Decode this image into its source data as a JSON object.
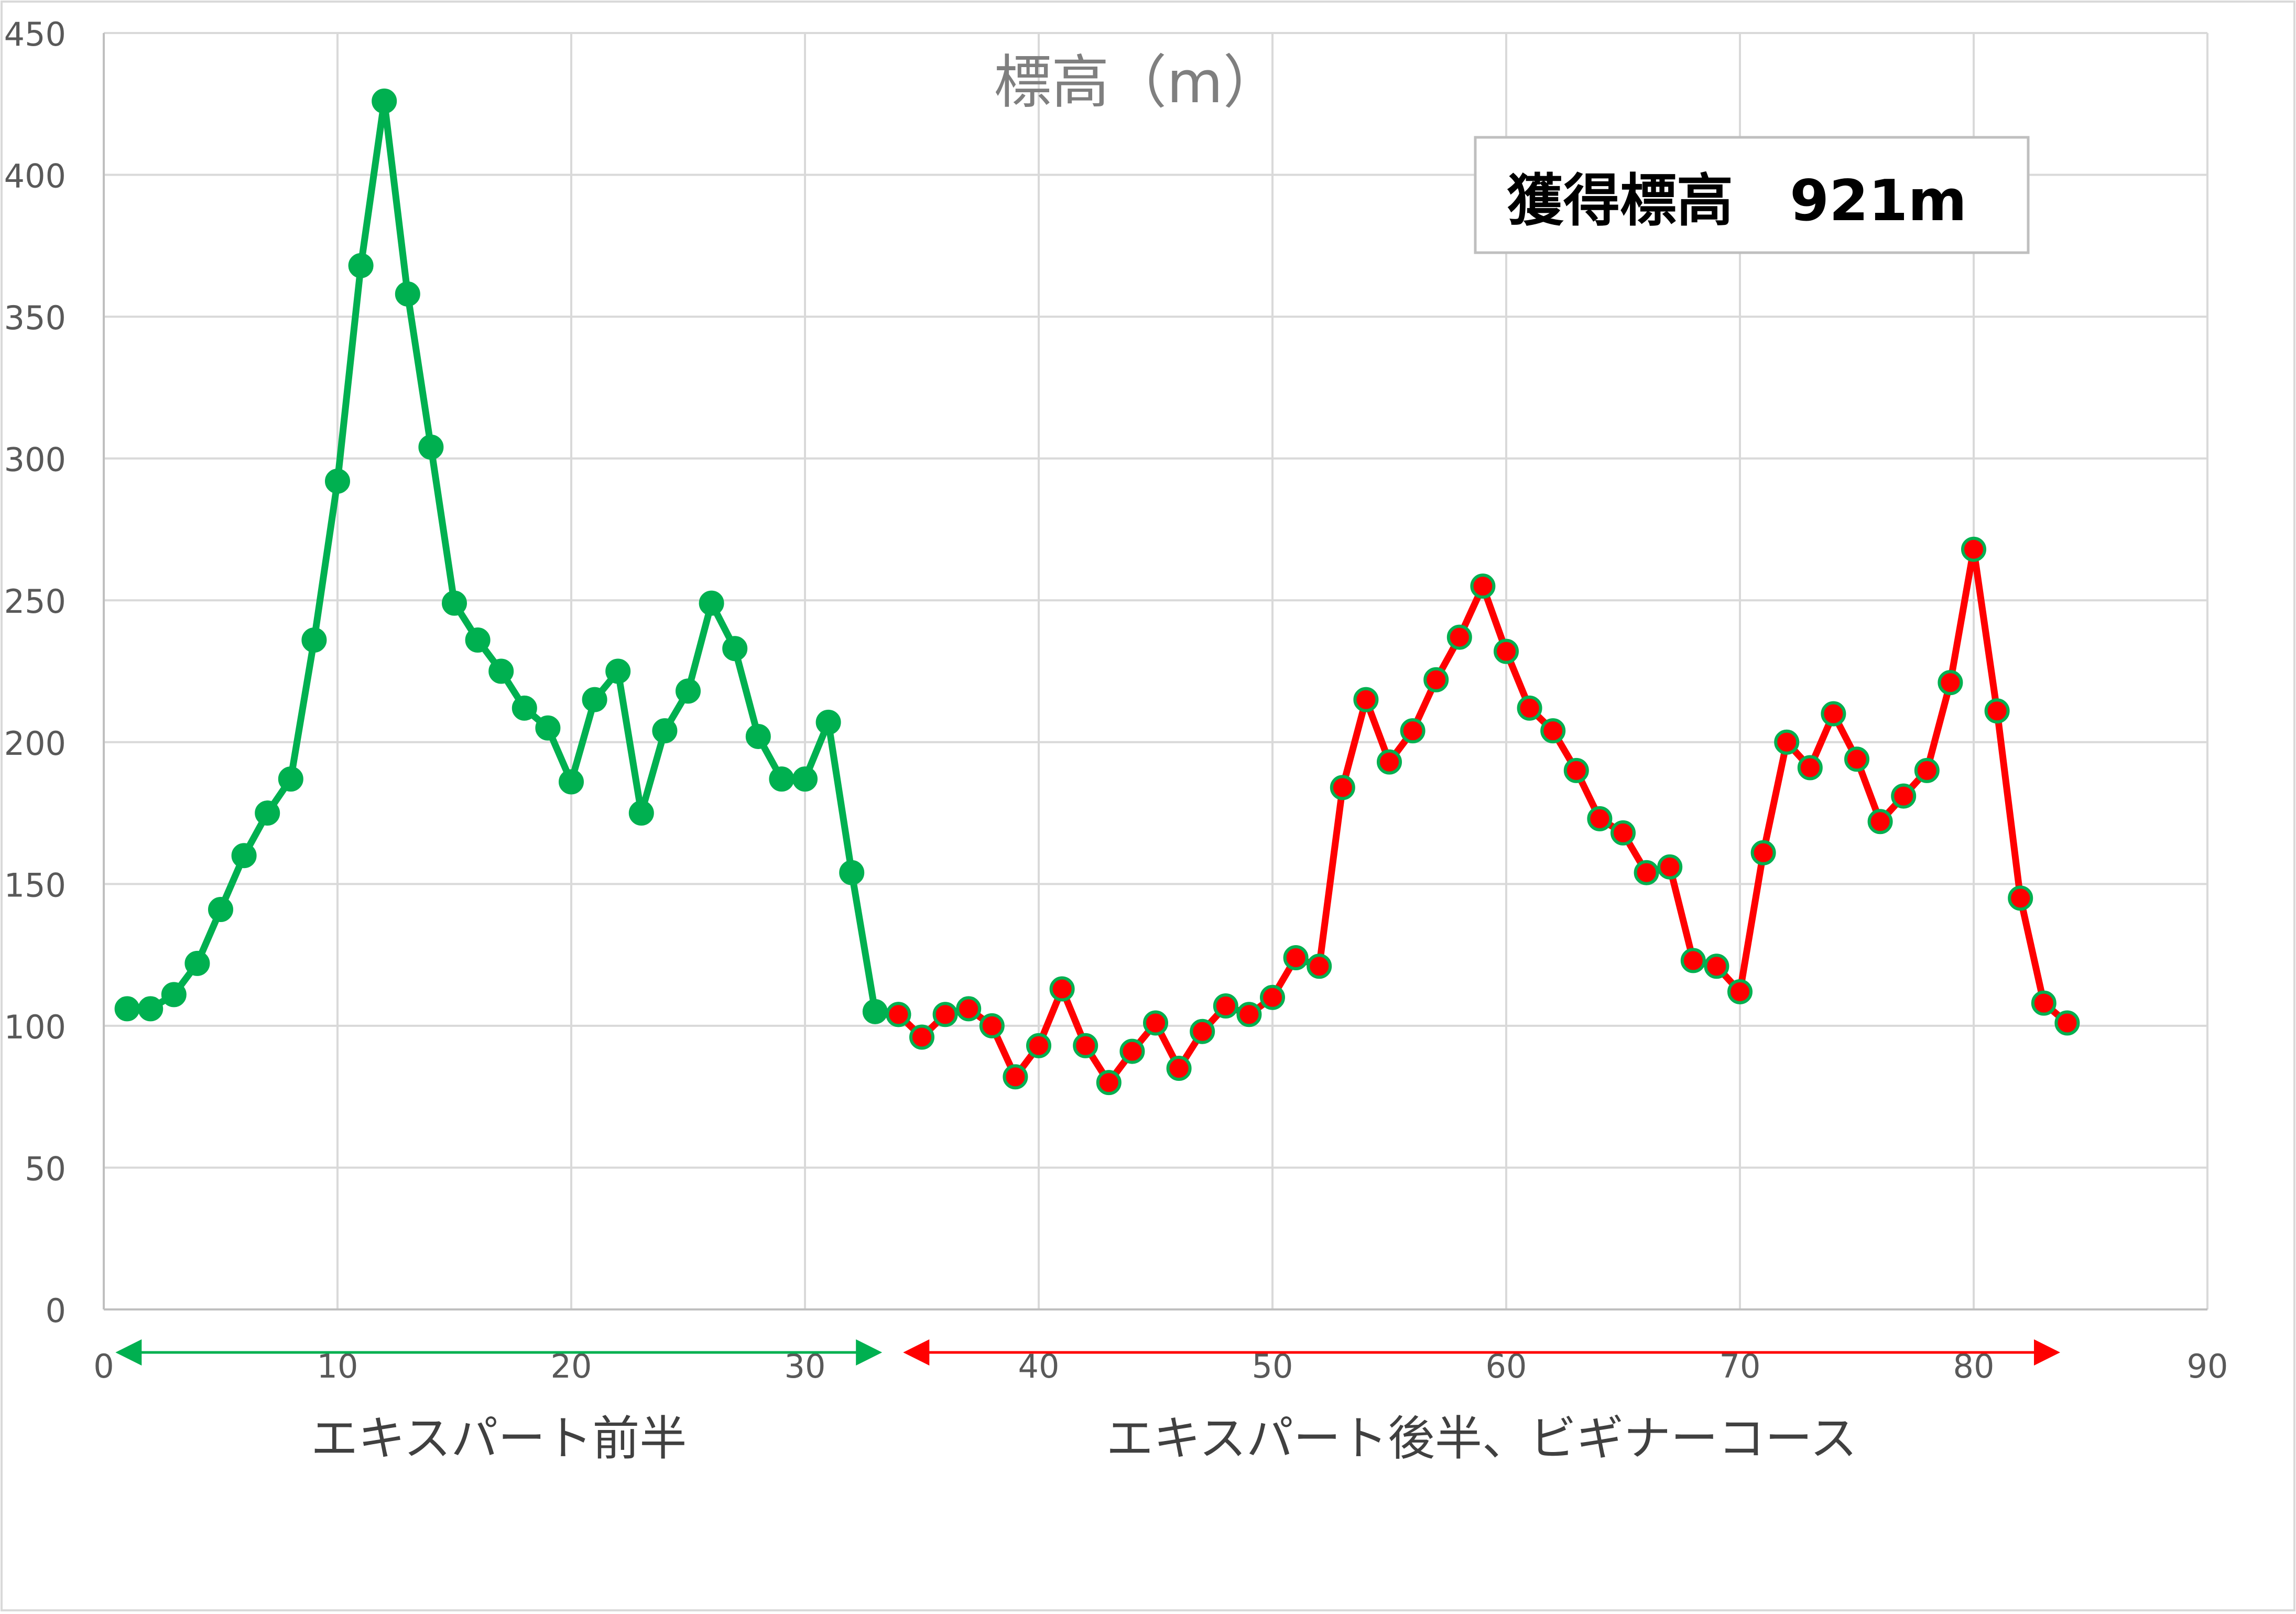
{
  "chart_data": {
    "type": "line",
    "title": "標高（m）",
    "annotation": "獲得標高　921m",
    "xlim": [
      0,
      90
    ],
    "ylim": [
      0,
      450
    ],
    "x_ticks": [
      "0",
      "10",
      "20",
      "30",
      "40",
      "50",
      "60",
      "70",
      "80",
      "90"
    ],
    "y_ticks": [
      "0",
      "50",
      "100",
      "150",
      "200",
      "250",
      "300",
      "350",
      "400",
      "450"
    ],
    "grid": true,
    "series": [
      {
        "color": "#00b050",
        "marker_fill": "#00b050",
        "x": [
          1,
          2,
          3,
          4,
          5,
          6,
          7,
          8,
          9,
          10,
          11,
          12,
          13,
          14,
          15,
          16,
          17,
          18,
          19,
          20,
          21,
          22,
          23,
          24,
          25,
          26,
          27,
          28,
          29,
          30,
          31,
          32,
          33,
          34
        ],
        "values": [
          106,
          106,
          111,
          122,
          141,
          160,
          175,
          187,
          236,
          292,
          368,
          426,
          358,
          304,
          249,
          236,
          225,
          212,
          205,
          186,
          215,
          225,
          175,
          204,
          218,
          249,
          233,
          202,
          187,
          187,
          207,
          154,
          105,
          104
        ]
      },
      {
        "color": "#ff0000",
        "marker_fill": "#ff0000",
        "x": [
          34,
          35,
          36,
          37,
          38,
          39,
          40,
          41,
          42,
          43,
          44,
          45,
          46,
          47,
          48,
          49,
          50,
          51,
          52,
          53,
          54,
          55,
          56,
          57,
          58,
          59,
          60,
          61,
          62,
          63,
          64,
          65,
          66,
          67,
          68,
          69,
          70,
          71,
          72,
          73,
          74,
          75,
          76,
          77,
          78,
          79,
          80,
          81,
          82,
          83,
          84
        ],
        "values": [
          104,
          96,
          104,
          106,
          100,
          82,
          93,
          113,
          93,
          80,
          91,
          101,
          85,
          98,
          107,
          104,
          110,
          124,
          121,
          184,
          215,
          193,
          204,
          222,
          237,
          255,
          232,
          212,
          204,
          190,
          173,
          168,
          154,
          156,
          123,
          121,
          112,
          161,
          200,
          191,
          210,
          194,
          172,
          181,
          190,
          221,
          268,
          211,
          145,
          108,
          101
        ]
      }
    ],
    "ranges": [
      {
        "label": "エキスパート前半",
        "from": 0.5,
        "to": 33.3,
        "color": "#00b050"
      },
      {
        "label": "エキスパート後半、ビギナーコース",
        "from": 34.2,
        "to": 83.7,
        "color": "#ff0000"
      }
    ]
  }
}
